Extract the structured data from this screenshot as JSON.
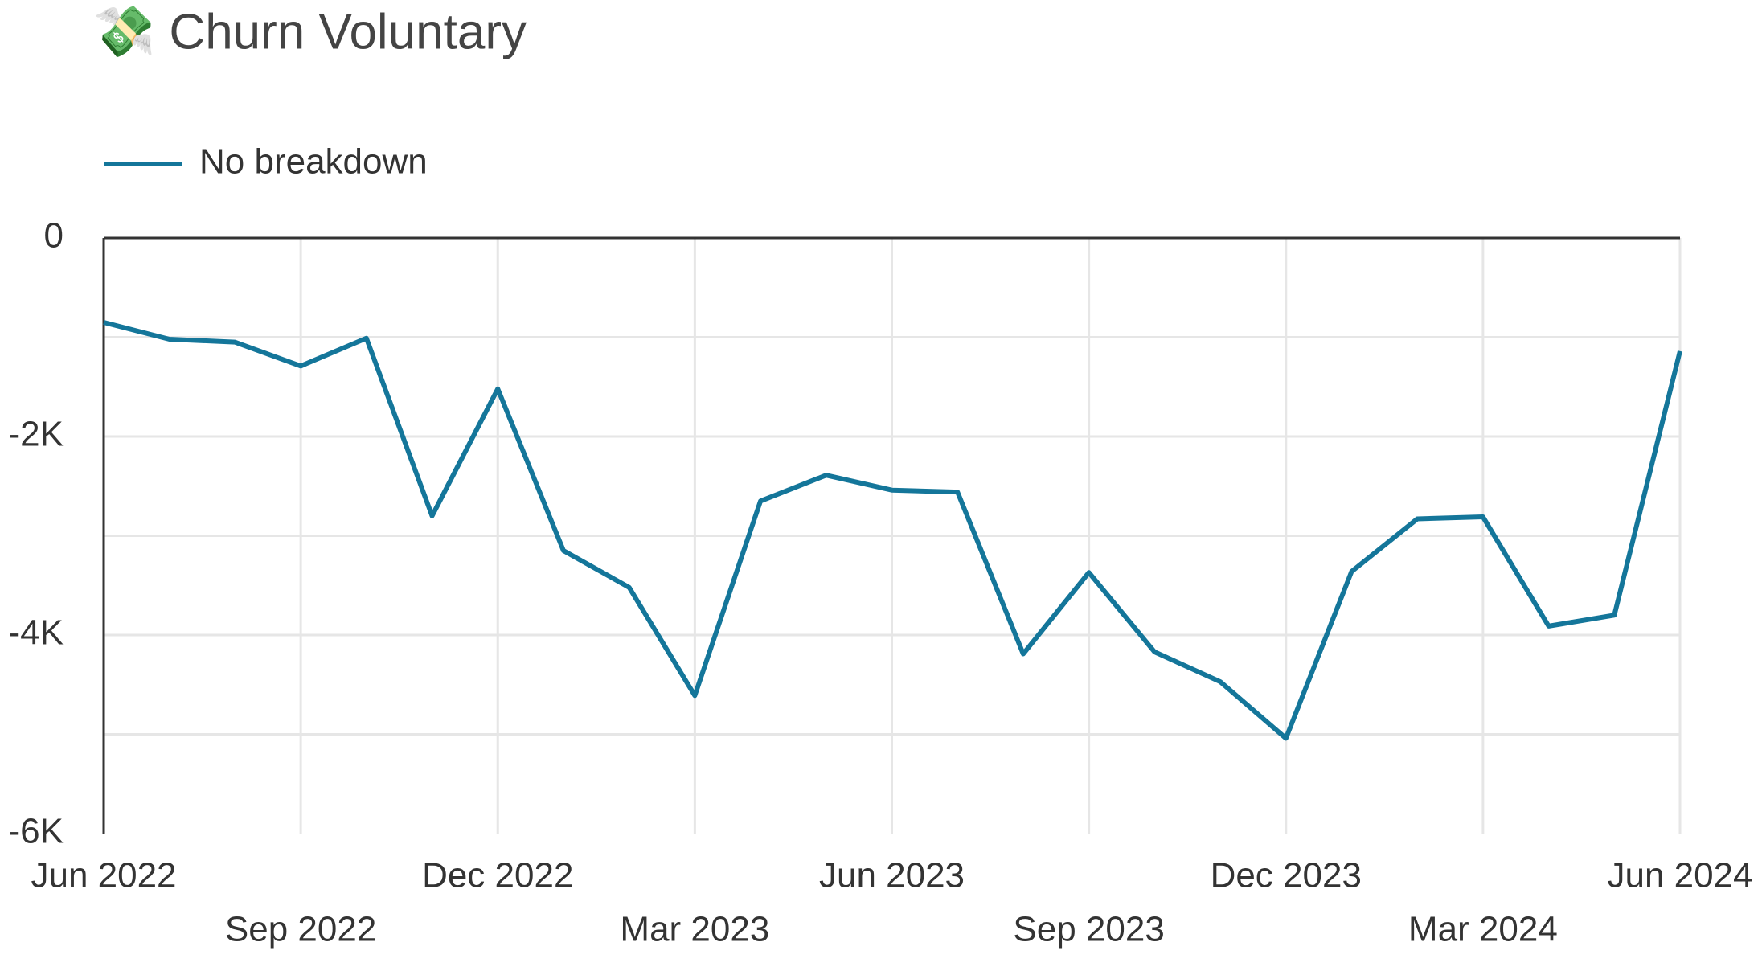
{
  "chart_data": {
    "type": "line",
    "title": "💸 Churn Voluntary",
    "categories": [
      "Jun 2022",
      null,
      null,
      "Sep 2022",
      null,
      null,
      "Dec 2022",
      null,
      null,
      "Mar 2023",
      null,
      null,
      "Jun 2023",
      null,
      null,
      "Sep 2023",
      null,
      null,
      "Dec 2023",
      null,
      null,
      "Mar 2024",
      null,
      null,
      "Jun 2024"
    ],
    "series": [
      {
        "name": "No breakdown",
        "color": "#14769a",
        "values": [
          -850,
          -1020,
          -1050,
          -1290,
          -1010,
          -2800,
          -1520,
          -3150,
          -3520,
          -4610,
          -2650,
          -2390,
          -2540,
          -2560,
          -4190,
          -3370,
          -4170,
          -4470,
          -5040,
          -3360,
          -2830,
          -2810,
          -3910,
          -3800,
          -1140
        ]
      }
    ],
    "ylim": [
      -6000,
      0
    ],
    "yticks": [
      0,
      {
        "value": -2000,
        "label": "-2K"
      },
      {
        "value": -4000,
        "label": "-4K"
      },
      {
        "value": -6000,
        "label": "-6K"
      }
    ],
    "minor_yticks": [
      -1000,
      -3000,
      -5000
    ],
    "grid": true,
    "legend": "top-left"
  }
}
